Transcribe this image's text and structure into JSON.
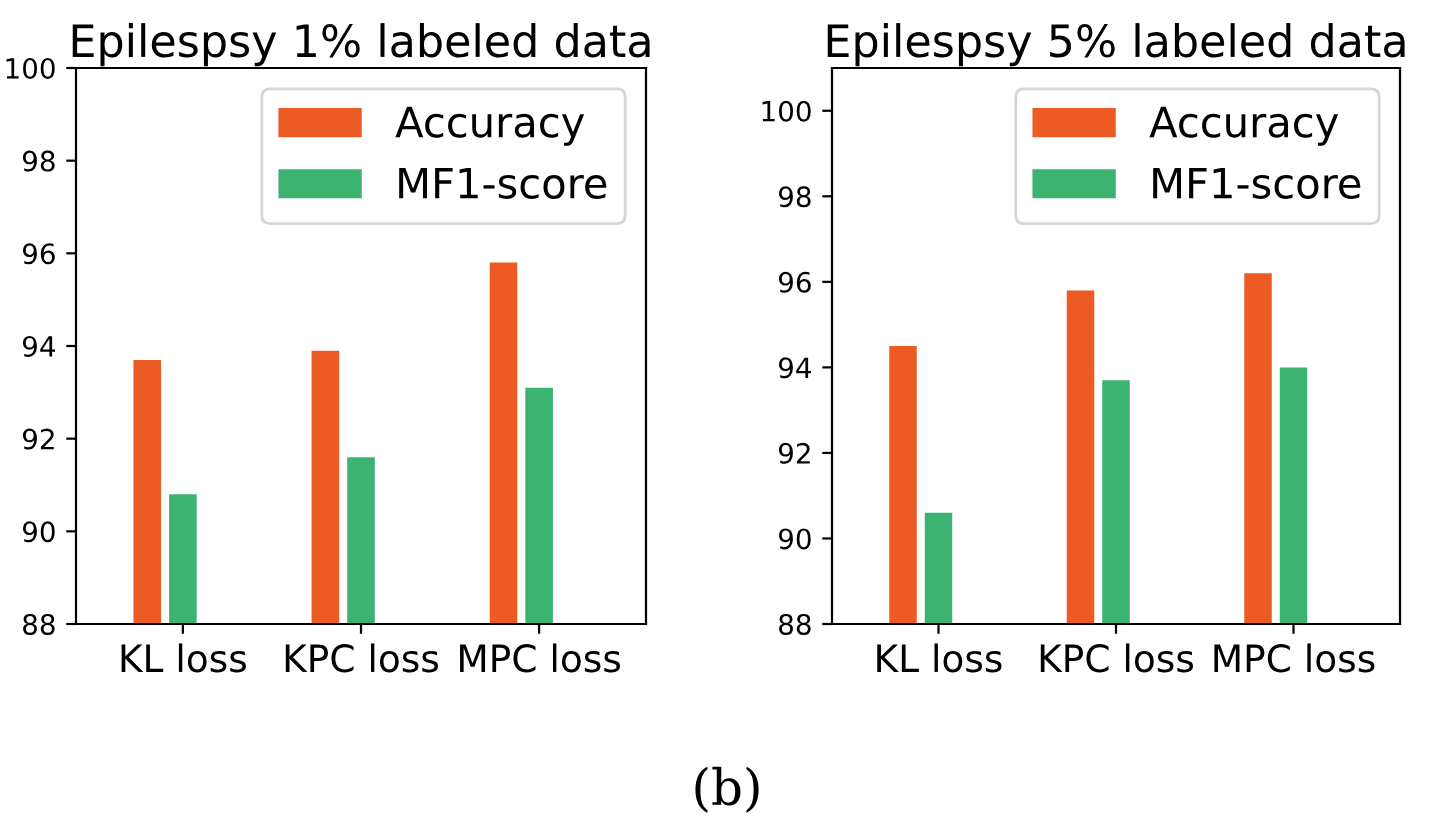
{
  "chart_data": [
    {
      "type": "bar",
      "title": "Epilespsy 1% labeled data",
      "categories": [
        "KL loss",
        "KPC loss",
        "MPC loss"
      ],
      "series": [
        {
          "name": "Accuracy",
          "color": "#ec5b24",
          "values": [
            93.7,
            93.9,
            95.8
          ]
        },
        {
          "name": "MF1-score",
          "color": "#3cb371",
          "values": [
            90.8,
            91.6,
            93.1
          ]
        }
      ],
      "ylim": [
        88,
        100
      ],
      "yticks": [
        88,
        90,
        92,
        94,
        96,
        98,
        100
      ],
      "grid": false,
      "legend": "top right",
      "annotations": [
        "(b)"
      ]
    },
    {
      "type": "bar",
      "title": "Epilespsy 5% labeled data",
      "categories": [
        "KL loss",
        "KPC loss",
        "MPC loss"
      ],
      "series": [
        {
          "name": "Accuracy",
          "color": "#ec5b24",
          "values": [
            94.5,
            95.8,
            96.2
          ]
        },
        {
          "name": "MF1-score",
          "color": "#3cb371",
          "values": [
            90.6,
            93.7,
            94.0
          ]
        }
      ],
      "ylim": [
        88,
        101
      ],
      "yticks": [
        88,
        90,
        92,
        94,
        96,
        98,
        100
      ],
      "grid": false,
      "legend": "top right"
    }
  ]
}
